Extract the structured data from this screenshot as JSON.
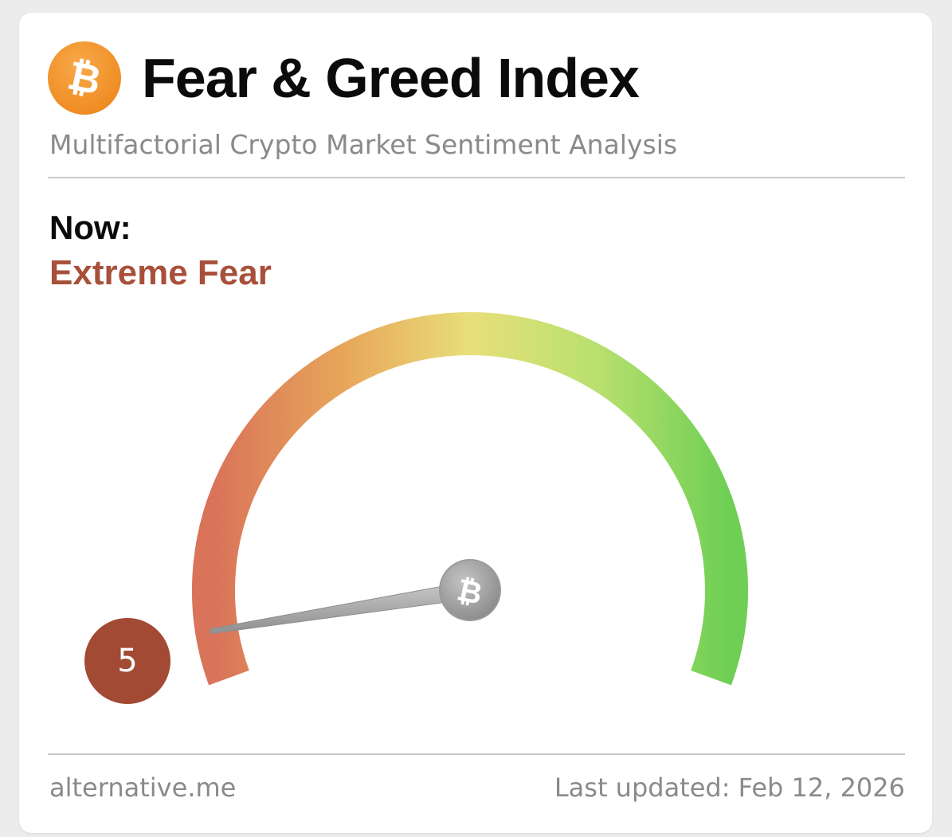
{
  "header": {
    "logo_glyph": "₿",
    "title": "Fear & Greed Index",
    "subtitle": "Multifactorial Crypto Market Sentiment Analysis"
  },
  "now": {
    "label": "Now:",
    "sentiment": "Extreme Fear",
    "value": "5",
    "value_number": 5,
    "scale_min": 0,
    "scale_max": 100
  },
  "gauge": {
    "hub_glyph": "₿"
  },
  "footer": {
    "source": "alternative.me",
    "last_updated": "Last updated: Feb 12, 2026"
  },
  "colors": {
    "extreme_fear": "#a24a34",
    "fear": "#e8a55a",
    "neutral": "#e5e07a",
    "greed": "#a4dd6a",
    "extreme_greed": "#6fcf54",
    "logo_orange": "#f08d24"
  },
  "icons": {
    "logo": "bitcoin-icon",
    "needle_hub": "bitcoin-icon"
  }
}
